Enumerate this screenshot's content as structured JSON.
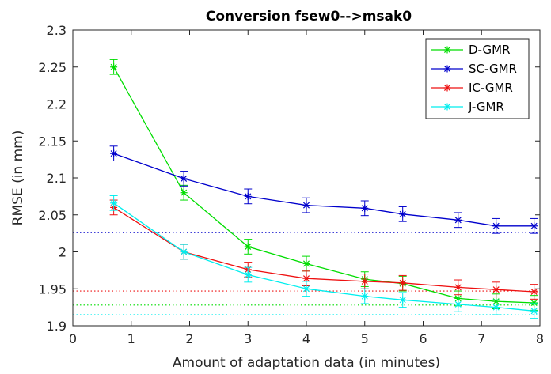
{
  "chart_data": {
    "type": "line",
    "title": "Conversion fsew0-->msak0",
    "xlabel": "Amount of adaptation data (in minutes)",
    "ylabel": "RMSE (in mm)",
    "xlim": [
      0,
      8
    ],
    "ylim": [
      1.9,
      2.3
    ],
    "xticks": [
      0,
      1,
      2,
      3,
      4,
      5,
      6,
      7,
      8
    ],
    "xtick_labels": [
      "0",
      "1",
      "2",
      "3",
      "4",
      "5",
      "6",
      "7",
      "8"
    ],
    "yticks": [
      1.9,
      1.95,
      2.0,
      2.05,
      2.1,
      2.15,
      2.2,
      2.25,
      2.3
    ],
    "ytick_labels": [
      "1.9",
      "1.95",
      "2",
      "2.05",
      "2.1",
      "2.15",
      "2.2",
      "2.25",
      "2.3"
    ],
    "grid": false,
    "legend_position": "top-right",
    "x": [
      0.7,
      1.9,
      3.0,
      4.0,
      5.0,
      5.65,
      6.6,
      7.25,
      7.9
    ],
    "series": [
      {
        "name": "D-GMR",
        "color": "#00dd00",
        "values": [
          2.25,
          2.08,
          2.007,
          1.984,
          1.963,
          1.957,
          1.937,
          1.933,
          1.931
        ],
        "errors": [
          0.01,
          0.01,
          0.01,
          0.01,
          0.01,
          0.01,
          0.01,
          0.01,
          0.01
        ],
        "baseline": 1.928
      },
      {
        "name": "SC-GMR",
        "color": "#0000cc",
        "values": [
          2.133,
          2.099,
          2.075,
          2.063,
          2.059,
          2.051,
          2.043,
          2.035,
          2.035
        ],
        "errors": [
          0.01,
          0.01,
          0.01,
          0.01,
          0.01,
          0.01,
          0.01,
          0.01,
          0.01
        ],
        "baseline": 2.026
      },
      {
        "name": "IC-GMR",
        "color": "#ee1111",
        "values": [
          2.06,
          2.0,
          1.976,
          1.964,
          1.96,
          1.958,
          1.952,
          1.949,
          1.946
        ],
        "errors": [
          0.01,
          0.01,
          0.01,
          0.01,
          0.01,
          0.01,
          0.01,
          0.01,
          0.01
        ],
        "baseline": 1.947
      },
      {
        "name": "J-GMR",
        "color": "#00eeee",
        "values": [
          2.066,
          2.0,
          1.969,
          1.95,
          1.94,
          1.935,
          1.929,
          1.925,
          1.92
        ],
        "errors": [
          0.01,
          0.01,
          0.01,
          0.01,
          0.01,
          0.01,
          0.01,
          0.01,
          0.01
        ],
        "baseline": 1.915
      }
    ]
  }
}
